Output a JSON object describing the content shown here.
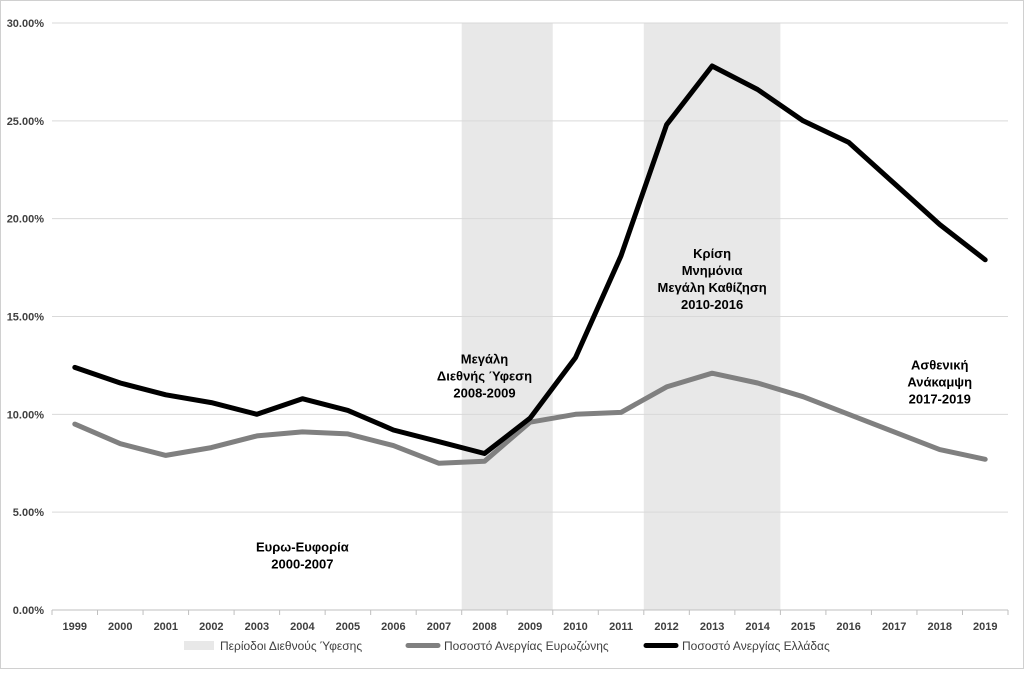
{
  "chart_data": {
    "type": "line",
    "title": "",
    "xlabel": "",
    "ylabel": "",
    "categories": [
      "1999",
      "2000",
      "2001",
      "2002",
      "2003",
      "2004",
      "2005",
      "2006",
      "2007",
      "2008",
      "2009",
      "2010",
      "2011",
      "2012",
      "2013",
      "2014",
      "2015",
      "2016",
      "2017",
      "2018",
      "2019"
    ],
    "ylim": [
      0,
      30
    ],
    "y_ticks": [
      0,
      5,
      10,
      15,
      20,
      25,
      30
    ],
    "y_tick_labels": [
      "0.00%",
      "5.00%",
      "10.00%",
      "15.00%",
      "20.00%",
      "25.00%",
      "30.00%"
    ],
    "grid": true,
    "legend_position": "bottom",
    "shaded_periods": [
      {
        "name": "Περίοδοι Διεθνούς Ύφεσης",
        "from": "2008",
        "to": "2009",
        "color": "#e8e8e8"
      },
      {
        "name": "Περίοδοι Διεθνούς Ύφεσης",
        "from": "2012",
        "to": "2014",
        "color": "#e8e8e8"
      }
    ],
    "series": [
      {
        "name": "Ποσοστό Ανεργίας Ευρωζώνης",
        "color": "#808080",
        "values": [
          9.5,
          8.5,
          7.9,
          8.3,
          8.9,
          9.1,
          9.0,
          8.4,
          7.5,
          7.6,
          9.6,
          10.0,
          10.1,
          11.4,
          12.1,
          11.6,
          10.9,
          10.0,
          9.1,
          8.2,
          7.7
        ]
      },
      {
        "name": "Ποσοστό Ανεργίας Ελλάδας",
        "color": "#000000",
        "values": [
          12.4,
          11.6,
          11.0,
          10.6,
          10.0,
          10.8,
          10.2,
          9.2,
          8.6,
          8.0,
          9.8,
          12.9,
          18.1,
          24.8,
          27.8,
          26.6,
          25.0,
          23.9,
          21.8,
          19.7,
          17.9
        ]
      }
    ],
    "annotations": [
      {
        "lines": [
          "Ευρω-Ευφορία",
          "2000-2007"
        ],
        "x": "2004",
        "y": 3.0
      },
      {
        "lines": [
          "Μεγάλη",
          "Διεθνής Ύφεση",
          "2008-2009"
        ],
        "x": "2008",
        "y": 12.6
      },
      {
        "lines": [
          "Κρίση",
          "Μνημόνια",
          "Μεγάλη Καθίζηση",
          "2010-2016"
        ],
        "x": "2013",
        "y": 18.0
      },
      {
        "lines": [
          "Ασθενική",
          "Ανάκαμψη",
          "2017-2019"
        ],
        "x": "2018",
        "y": 12.3
      }
    ],
    "legend": [
      {
        "label": "Περίοδοι Διεθνούς Ύφεσης",
        "kind": "area",
        "color": "#e8e8e8"
      },
      {
        "label": "Ποσοστό Ανεργίας Ευρωζώνης",
        "kind": "line",
        "color": "#808080"
      },
      {
        "label": "Ποσοστό Ανεργίας Ελλάδας",
        "kind": "line",
        "color": "#000000"
      }
    ]
  }
}
